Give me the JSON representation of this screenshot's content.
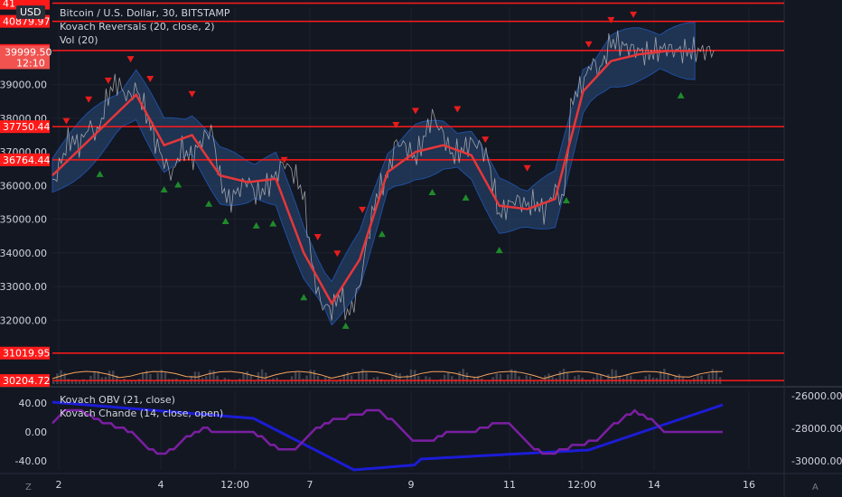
{
  "header": {
    "title": "Bitcoin / U.S. Dollar, 30, BITSTAMP",
    "indicator1": "Kovach Reversals (20, close, 2)",
    "indicator2": "Vol (20)",
    "currency_button": "USD"
  },
  "lower_pane": {
    "indicator1": "Kovach OBV (21, close)",
    "indicator2": "Kovach Chande (14, close, open)"
  },
  "bottom_bar": {
    "left_icon": "Z",
    "right_icon": "A"
  },
  "colors": {
    "background": "#131722",
    "grid": "#1e222d",
    "level_line": "#ff1a1a",
    "price_line": "#c8c8c8",
    "ma": "#e5373a",
    "band": "#2a4a7a",
    "volume_ma": "#f7a35c",
    "obv": "#1c1cd6",
    "chande": "#7b1fa2",
    "sell_marker": "#e81c1c",
    "buy_marker": "#1f8a2a"
  },
  "chart_data": [
    {
      "type": "line",
      "title": "Bitcoin / U.S. Dollar, 30, BITSTAMP",
      "x_ticks": [
        "2",
        "4",
        "12:00",
        "7",
        "9",
        "11",
        "12:00",
        "14",
        "16"
      ],
      "y_ticks": [
        32000,
        33000,
        34000,
        35000,
        36000,
        37000,
        38000,
        39000
      ],
      "ylim": [
        30100,
        41300
      ],
      "levels": [
        {
          "value": 41420,
          "label": "41"
        },
        {
          "value": 40879.97,
          "label": "40879.97"
        },
        {
          "value": 40014.72,
          "label": "40014.72"
        },
        {
          "value": 37750.44,
          "label": "37750.44"
        },
        {
          "value": 36764.44,
          "label": "36764.44"
        },
        {
          "value": 31019.95,
          "label": "31019.95"
        },
        {
          "value": 30204.72,
          "label": "30204.72"
        }
      ],
      "last_price": {
        "value": 39999.5,
        "label": "39999.50",
        "countdown": "12:10"
      },
      "series": [
        {
          "name": "Price",
          "x": [
            0,
            0.3,
            0.6,
            1.0,
            1.3,
            1.6,
            2.0,
            2.3,
            2.7,
            3.0,
            3.3,
            3.7,
            4.0,
            4.3,
            4.6,
            5.0,
            5.3,
            5.7,
            6.0,
            6.3,
            6.7,
            7.0,
            7.3,
            7.6,
            8.0,
            8.3,
            8.7,
            9.0,
            9.3,
            9.6,
            10.0,
            10.3,
            10.6,
            11.0,
            11.3,
            11.6,
            12.0,
            12.3,
            12.6,
            13.0,
            13.3,
            13.6,
            14.0,
            14.3,
            14.6,
            15.0,
            15.3,
            15.6,
            16.0,
            16.3,
            16.6,
            17.0,
            17.3,
            17.6,
            18.0,
            18.3,
            18.6,
            19.0,
            19.3,
            19.6,
            20.0,
            20.3,
            20.6,
            21.0,
            21.3,
            21.6,
            22.0,
            22.3,
            22.6,
            23.0,
            23.3,
            23.6,
            24.0
          ],
          "values": [
            36000,
            36700,
            37400,
            37200,
            37800,
            37500,
            38700,
            39100,
            38600,
            38900,
            38300,
            37300,
            36700,
            36300,
            37100,
            36800,
            37300,
            37700,
            36200,
            35500,
            35900,
            36200,
            35700,
            35900,
            36300,
            36700,
            36300,
            35700,
            33600,
            32500,
            32300,
            32800,
            32100,
            33000,
            34500,
            35700,
            36300,
            37300,
            37200,
            36800,
            37400,
            38100,
            37500,
            36900,
            37000,
            37300,
            37200,
            36800,
            35100,
            35400,
            35600,
            35400,
            35500,
            35200,
            35900,
            35500,
            38600,
            39000,
            39700,
            39400,
            40300,
            40200,
            40100,
            40000,
            39900,
            40000,
            40100,
            40000,
            39999.5,
            40000,
            40000,
            40000,
            40000
          ]
        },
        {
          "name": "Kovach Reversals",
          "x": [
            0,
            1,
            2,
            3,
            4,
            5,
            6,
            7,
            8,
            9,
            10,
            11,
            12,
            13,
            14,
            15,
            16,
            17,
            18,
            19,
            20,
            21,
            22,
            23
          ],
          "values": [
            36300,
            37100,
            37900,
            38700,
            37200,
            37500,
            36300,
            36100,
            36200,
            34000,
            32500,
            33800,
            36400,
            37000,
            37200,
            36900,
            35400,
            35300,
            35600,
            38800,
            39700,
            39900,
            40000,
            39999.5
          ]
        }
      ]
    },
    {
      "type": "line",
      "series": [
        {
          "name": "Kovach OBV (21, close)"
        },
        {
          "name": "Kovach Chande (14, close, open)"
        }
      ],
      "y_ticks_left": [
        40.0,
        0.0,
        -40.0
      ],
      "y_tick_labels_left": [
        "40.00",
        "0.00",
        "-40.00"
      ],
      "y_ticks_right": [
        -26000,
        -28000,
        -30000
      ],
      "y_tick_labels_right": [
        "-26000.00",
        "-28000.00",
        "-30000.00"
      ]
    }
  ]
}
